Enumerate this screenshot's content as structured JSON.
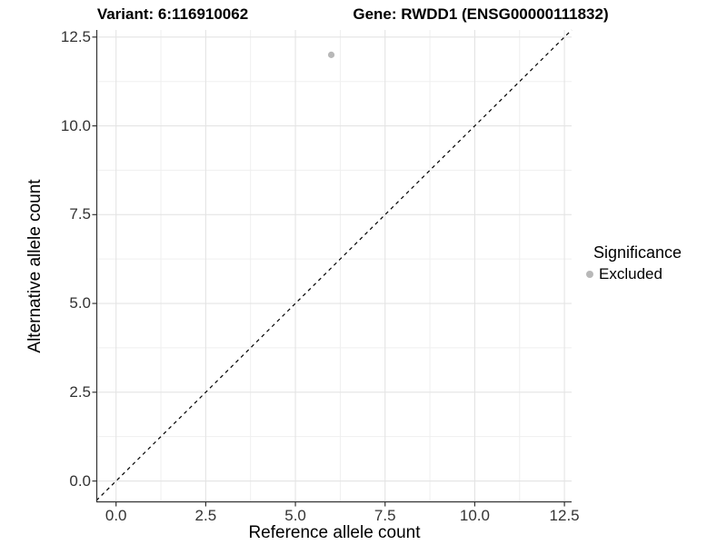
{
  "chart_data": {
    "type": "scatter",
    "title_left": "Variant: 6:116910062",
    "title_right": "Gene: RWDD1 (ENSG00000111832)",
    "xlabel": "Reference allele count",
    "ylabel": "Alternative allele count",
    "xlim": [
      -0.55,
      12.7
    ],
    "ylim": [
      -0.6,
      12.7
    ],
    "x_ticks": [
      0,
      2.5,
      5,
      7.5,
      10,
      12.5
    ],
    "y_ticks": [
      0,
      2.5,
      5,
      7.5,
      10,
      12.5
    ],
    "x_tick_labels": [
      "0.0",
      "2.5",
      "5.0",
      "7.5",
      "10.0",
      "12.5"
    ],
    "y_tick_labels": [
      "0.0",
      "2.5",
      "5.0",
      "7.5",
      "10.0",
      "12.5"
    ],
    "grid": "major+minor",
    "legend_position": "right",
    "series": [
      {
        "name": "Excluded",
        "color": "#b8b8b8",
        "points": [
          {
            "x": 6,
            "y": 12
          }
        ]
      }
    ],
    "reference_line": {
      "slope": 1,
      "intercept": 0,
      "style": "dashed",
      "color": "#000000"
    }
  },
  "legend": {
    "title": "Significance",
    "items": [
      {
        "label": "Excluded",
        "color": "#b8b8b8"
      }
    ]
  },
  "colors": {
    "background": "#ffffff",
    "grid_major": "#e4e4e4",
    "grid_minor": "#efefef",
    "axis": "#333333",
    "tick_text": "#333333",
    "point": "#b8b8b8"
  }
}
